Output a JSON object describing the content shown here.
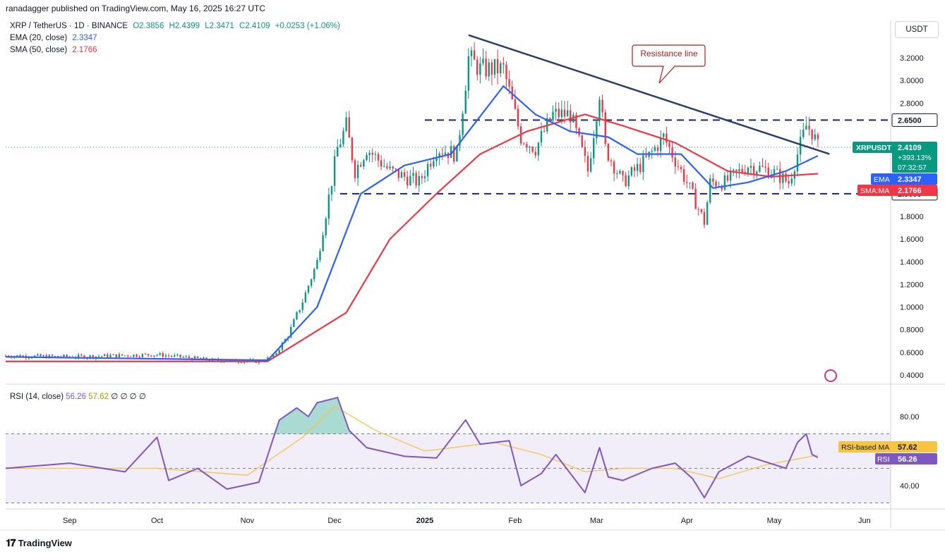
{
  "header": {
    "publisher": "ranadagger published on TradingView.com, May 16, 2025 16:27 UTC",
    "symbol": "XRP / TetherUS · 1D · BINANCE",
    "ohlc": {
      "o": "O2.3856",
      "h": "H2.4399",
      "l": "L2.3471",
      "c": "C2.4109",
      "chg": "+0.0253 (+1.06%)"
    },
    "ema_label": "EMA (20, close)",
    "ema_value": "2.3347",
    "sma_label": "SMA (50, close)",
    "sma_value": "2.1766",
    "currency": "USDT"
  },
  "rsi_legend": {
    "label": "RSI (14, close)",
    "v1": "56.26",
    "v2": "57.62",
    "rest": "∅ ∅ ∅ ∅"
  },
  "footer": {
    "brand": "TradingView"
  },
  "colors": {
    "up": "#089981",
    "down": "#f23645",
    "ema": "#2962ff",
    "sma": "#f23645",
    "trend": "#2a3f6e",
    "rsi": "#7e57c2",
    "rsi_ma": "#f5c542"
  },
  "chart_data": [
    {
      "type": "candlestick",
      "title": "XRP / TetherUS · 1D · BINANCE",
      "ylim": [
        0.3,
        3.5
      ],
      "yticks": [
        "3.2000",
        "3.0000",
        "2.8000",
        "2.6500",
        "2.4109",
        "2.3347",
        "2.1766",
        "2.0000",
        "1.8000",
        "1.6000",
        "1.4000",
        "1.2000",
        "1.0000",
        "0.8000",
        "0.6000",
        "0.4000"
      ],
      "xticks": [
        "Sep",
        "Oct",
        "Nov",
        "Dec",
        "2025",
        "Feb",
        "Mar",
        "Apr",
        "May",
        "Jun"
      ],
      "close_path": [
        [
          "2024-08-10",
          0.57
        ],
        [
          "2024-09-01",
          0.56
        ],
        [
          "2024-10-01",
          0.58
        ],
        [
          "2024-10-20",
          0.53
        ],
        [
          "2024-11-05",
          0.52
        ],
        [
          "2024-11-10",
          0.56
        ],
        [
          "2024-11-15",
          0.75
        ],
        [
          "2024-11-20",
          1.05
        ],
        [
          "2024-11-25",
          1.4
        ],
        [
          "2024-12-02",
          2.4
        ],
        [
          "2024-12-05",
          2.6
        ],
        [
          "2024-12-08",
          2.2
        ],
        [
          "2024-12-12",
          2.4
        ],
        [
          "2024-12-20",
          2.2
        ],
        [
          "2024-12-30",
          2.1
        ],
        [
          "2025-01-05",
          2.4
        ],
        [
          "2025-01-12",
          2.35
        ],
        [
          "2025-01-16",
          3.2
        ],
        [
          "2025-01-20",
          3.1
        ],
        [
          "2025-01-28",
          3.1
        ],
        [
          "2025-02-03",
          2.5
        ],
        [
          "2025-02-08",
          2.4
        ],
        [
          "2025-02-14",
          2.7
        ],
        [
          "2025-02-20",
          2.7
        ],
        [
          "2025-02-26",
          2.2
        ],
        [
          "2025-03-02",
          2.9
        ],
        [
          "2025-03-04",
          2.4
        ],
        [
          "2025-03-10",
          2.1
        ],
        [
          "2025-03-18",
          2.3
        ],
        [
          "2025-03-24",
          2.5
        ],
        [
          "2025-04-01",
          2.1
        ],
        [
          "2025-04-07",
          1.75
        ],
        [
          "2025-04-09",
          2.1
        ],
        [
          "2025-04-14",
          2.1
        ],
        [
          "2025-04-22",
          2.25
        ],
        [
          "2025-04-30",
          2.2
        ],
        [
          "2025-05-06",
          2.1
        ],
        [
          "2025-05-09",
          2.35
        ],
        [
          "2025-05-12",
          2.6
        ],
        [
          "2025-05-14",
          2.55
        ],
        [
          "2025-05-16",
          2.41
        ]
      ],
      "ema20_path": [
        [
          "2024-08-10",
          0.56
        ],
        [
          "2024-11-08",
          0.53
        ],
        [
          "2024-11-25",
          1.0
        ],
        [
          "2024-12-10",
          2.0
        ],
        [
          "2024-12-25",
          2.25
        ],
        [
          "2025-01-10",
          2.35
        ],
        [
          "2025-01-28",
          2.95
        ],
        [
          "2025-02-08",
          2.7
        ],
        [
          "2025-02-20",
          2.55
        ],
        [
          "2025-03-05",
          2.5
        ],
        [
          "2025-03-15",
          2.35
        ],
        [
          "2025-03-30",
          2.35
        ],
        [
          "2025-04-10",
          2.05
        ],
        [
          "2025-04-22",
          2.1
        ],
        [
          "2025-05-05",
          2.2
        ],
        [
          "2025-05-16",
          2.3347
        ]
      ],
      "sma50_path": [
        [
          "2024-08-10",
          0.52
        ],
        [
          "2024-11-08",
          0.52
        ],
        [
          "2024-12-05",
          0.95
        ],
        [
          "2024-12-20",
          1.6
        ],
        [
          "2025-01-05",
          2.0
        ],
        [
          "2025-01-20",
          2.35
        ],
        [
          "2025-02-05",
          2.55
        ],
        [
          "2025-02-25",
          2.7
        ],
        [
          "2025-03-10",
          2.6
        ],
        [
          "2025-03-28",
          2.45
        ],
        [
          "2025-04-15",
          2.2
        ],
        [
          "2025-04-30",
          2.15
        ],
        [
          "2025-05-16",
          2.1766
        ]
      ],
      "levels": [
        {
          "value": 2.65,
          "label": "2.6500"
        },
        {
          "value": 2.0,
          "label": "2.0000"
        }
      ],
      "resistance_line": {
        "from": [
          "2025-01-16",
          3.4
        ],
        "to": [
          "2025-05-20",
          2.35
        ]
      },
      "annotation": "Resistance line",
      "price_labels": [
        {
          "name": "XRPUSDT",
          "value": "2.4109",
          "extra": "+393.13%",
          "timer": "07:32:57"
        },
        {
          "name": "EMA",
          "value": "2.3347"
        },
        {
          "name": "SMA:MA",
          "value": "2.1766"
        }
      ]
    },
    {
      "type": "line",
      "title": "RSI (14, close)",
      "ylim": [
        25,
        95
      ],
      "yticks": [
        "80.00",
        "40.00"
      ],
      "bands": [
        70,
        50,
        30
      ],
      "rsi_path": [
        [
          "2024-08-10",
          50
        ],
        [
          "2024-09-01",
          53
        ],
        [
          "2024-09-20",
          48
        ],
        [
          "2024-10-01",
          68
        ],
        [
          "2024-10-05",
          43
        ],
        [
          "2024-10-15",
          50
        ],
        [
          "2024-10-25",
          38
        ],
        [
          "2024-11-05",
          42
        ],
        [
          "2024-11-12",
          78
        ],
        [
          "2024-11-18",
          85
        ],
        [
          "2024-11-22",
          80
        ],
        [
          "2024-11-25",
          88
        ],
        [
          "2024-12-02",
          91
        ],
        [
          "2024-12-06",
          72
        ],
        [
          "2024-12-12",
          62
        ],
        [
          "2024-12-25",
          57
        ],
        [
          "2025-01-05",
          56
        ],
        [
          "2025-01-15",
          78
        ],
        [
          "2025-01-20",
          64
        ],
        [
          "2025-01-30",
          66
        ],
        [
          "2025-02-03",
          40
        ],
        [
          "2025-02-10",
          47
        ],
        [
          "2025-02-15",
          58
        ],
        [
          "2025-02-25",
          36
        ],
        [
          "2025-03-02",
          62
        ],
        [
          "2025-03-05",
          45
        ],
        [
          "2025-03-10",
          43
        ],
        [
          "2025-03-20",
          50
        ],
        [
          "2025-03-28",
          53
        ],
        [
          "2025-04-03",
          44
        ],
        [
          "2025-04-07",
          33
        ],
        [
          "2025-04-12",
          48
        ],
        [
          "2025-04-22",
          57
        ],
        [
          "2025-05-05",
          50
        ],
        [
          "2025-05-09",
          65
        ],
        [
          "2025-05-12",
          70
        ],
        [
          "2025-05-14",
          58
        ],
        [
          "2025-05-16",
          56.26
        ]
      ],
      "rsi_ma_path": [
        [
          "2024-08-10",
          50
        ],
        [
          "2024-10-01",
          50
        ],
        [
          "2024-11-01",
          46
        ],
        [
          "2024-11-20",
          68
        ],
        [
          "2024-12-01",
          86
        ],
        [
          "2024-12-15",
          72
        ],
        [
          "2025-01-01",
          60
        ],
        [
          "2025-01-25",
          65
        ],
        [
          "2025-02-10",
          58
        ],
        [
          "2025-02-25",
          48
        ],
        [
          "2025-03-10",
          50
        ],
        [
          "2025-03-28",
          50
        ],
        [
          "2025-04-12",
          44
        ],
        [
          "2025-04-28",
          52
        ],
        [
          "2025-05-16",
          57.62
        ]
      ],
      "labels": [
        {
          "name": "RSI-based MA",
          "value": "57.62"
        },
        {
          "name": "RSI",
          "value": "56.26"
        }
      ]
    }
  ]
}
